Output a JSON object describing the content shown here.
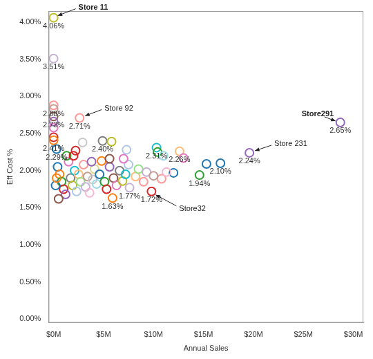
{
  "chart_data": {
    "type": "scatter",
    "x_label": "Annual Sales",
    "y_label": "Eff Cost %",
    "marker": "circle_open",
    "grid": false,
    "data_labels": true,
    "xlim": [
      -500000,
      31000000
    ],
    "ylim": [
      -0.05,
      4.15
    ],
    "xticks": [
      {
        "value": 0,
        "label": "$0M"
      },
      {
        "value": 5000000,
        "label": "$5M"
      },
      {
        "value": 10000000,
        "label": "$10M"
      },
      {
        "value": 15000000,
        "label": "$15M"
      },
      {
        "value": 20000000,
        "label": "$20M"
      },
      {
        "value": 25000000,
        "label": "$25M"
      },
      {
        "value": 30000000,
        "label": "$30M"
      }
    ],
    "yticks": [
      {
        "value": 0,
        "label": "0.00%"
      },
      {
        "value": 0.5,
        "label": "0.50%"
      },
      {
        "value": 1,
        "label": "1.00%"
      },
      {
        "value": 1.5,
        "label": "1.50%"
      },
      {
        "value": 2,
        "label": "2.00%"
      },
      {
        "value": 2.5,
        "label": "2.50%"
      },
      {
        "value": 3,
        "label": "3.00%"
      },
      {
        "value": 3.5,
        "label": "3.50%"
      },
      {
        "value": 4,
        "label": "4.00%"
      }
    ],
    "x": [
      0,
      0,
      0,
      0,
      0,
      0,
      0,
      0,
      0,
      2600000,
      300000,
      2900000,
      2200000,
      4900000,
      5800000,
      7300000,
      10300000,
      10400000,
      12600000,
      11000000,
      12000000,
      13000000,
      14600000,
      15300000,
      16700000,
      19600000,
      28700000,
      9800000,
      5900000,
      7600000,
      10800000,
      400000,
      600000,
      800000,
      1000000,
      1200000,
      500000,
      1500000,
      1700000,
      1900000,
      2100000,
      2300000,
      2500000,
      2700000,
      3000000,
      3200000,
      3400000,
      3600000,
      3900000,
      4100000,
      4300000,
      4600000,
      4800000,
      5100000,
      5300000,
      5600000,
      6000000,
      6300000,
      6600000,
      6900000,
      7200000,
      7500000,
      8200000,
      8500000,
      9000000,
      9300000,
      10000000,
      11300000,
      200000,
      300000,
      1300000,
      2000000,
      3800000,
      5600000,
      7000000
    ],
    "values": [
      4.06,
      3.51,
      2.88,
      2.83,
      2.73,
      2.66,
      2.58,
      2.45,
      2.41,
      2.71,
      2.29,
      2.38,
      2.27,
      2.4,
      2.39,
      2.28,
      2.31,
      2.25,
      2.26,
      2.2,
      1.97,
      2.17,
      1.94,
      2.09,
      2.1,
      2.24,
      2.65,
      1.72,
      1.63,
      1.77,
      1.89,
      2.05,
      1.95,
      1.85,
      1.75,
      1.68,
      1.62,
      2.12,
      1.9,
      1.8,
      2.0,
      1.72,
      1.95,
      1.85,
      2.08,
      1.78,
      1.92,
      1.7,
      1.88,
      2.02,
      1.82,
      1.95,
      2.13,
      1.85,
      1.75,
      2.05,
      1.9,
      1.8,
      2.0,
      1.86,
      1.95,
      2.08,
      1.92,
      2.02,
      1.85,
      1.98,
      1.93,
      1.98,
      1.8,
      1.9,
      2.2,
      2.2,
      2.12,
      2.16,
      2.16
    ],
    "value_labels": [
      "4.06%",
      "3.51%",
      "2.88%",
      null,
      "2.73%",
      null,
      null,
      null,
      "2.41%",
      "2.71%",
      "2.29%",
      null,
      null,
      "2.40%",
      null,
      null,
      "2.31%",
      null,
      "2.26%",
      null,
      null,
      null,
      "1.94%",
      null,
      "2.10%",
      "2.24%",
      "2.65%",
      "1.72%",
      "1.63%",
      "1.77%",
      null,
      null,
      null,
      null,
      null,
      null,
      null,
      null,
      null,
      null,
      null,
      null,
      null,
      null,
      null,
      null,
      null,
      null,
      null,
      null,
      null,
      null,
      null,
      null,
      null,
      null,
      null,
      null,
      null,
      null,
      null,
      null,
      null,
      null,
      null,
      null,
      null,
      null,
      null,
      null,
      null,
      null,
      null,
      null,
      null
    ],
    "colors": [
      "#bcbd22",
      "#c5b0d5",
      "#ff9896",
      "#c49c94",
      "#8c564b",
      "#9467bd",
      "#e377c2",
      "#d62728",
      "#ff7f0e",
      "#ff9896",
      "#1f77b4",
      "#c7c7c7",
      "#d62728",
      "#7f7f7f",
      "#bcbd22",
      "#aec7e8",
      "#17becf",
      "#2ca02c",
      "#ffbb78",
      "#9edae5",
      "#1f77b4",
      "#e377c2",
      "#2ca02c",
      "#1f77b4",
      "#1f77b4",
      "#9467bd",
      "#9467bd",
      "#d62728",
      "#ff7f0e",
      "#c5b0d5",
      "#ff9896",
      "#1f77b4",
      "#ff7f0e",
      "#2ca02c",
      "#d62728",
      "#9467bd",
      "#8c564b",
      "#e377c2",
      "#7f7f7f",
      "#bcbd22",
      "#17becf",
      "#aec7e8",
      "#ffbb78",
      "#98df8a",
      "#ff9896",
      "#c5b0d5",
      "#c49c94",
      "#f7b6d2",
      "#c7c7c7",
      "#dbdb8d",
      "#9edae5",
      "#1f77b4",
      "#ff7f0e",
      "#2ca02c",
      "#d62728",
      "#9467bd",
      "#8c564b",
      "#e377c2",
      "#7f7f7f",
      "#bcbd22",
      "#17becf",
      "#aec7e8",
      "#ffbb78",
      "#98df8a",
      "#ff9896",
      "#c5b0d5",
      "#c49c94",
      "#f7b6d2",
      "#1f77b4",
      "#ff7f0e",
      "#2ca02c",
      "#d62728",
      "#9467bd",
      "#8c564b",
      "#e377c2"
    ],
    "annotations": [
      {
        "text": "Store 11",
        "x": 0,
        "y": 4.06
      },
      {
        "text": "Store 92",
        "x": 2600000,
        "y": 2.71
      },
      {
        "text": "Store291",
        "x": 28700000,
        "y": 2.65
      },
      {
        "text": "Store 231",
        "x": 19600000,
        "y": 2.24
      },
      {
        "text": "Store32",
        "x": 9800000,
        "y": 1.72
      }
    ]
  }
}
